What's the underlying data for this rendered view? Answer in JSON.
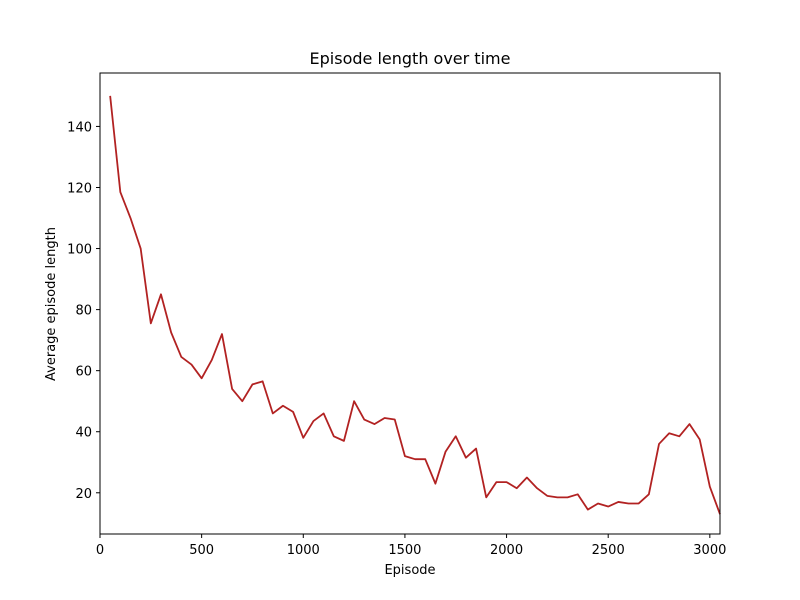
{
  "chart_data": {
    "type": "line",
    "title": "Episode length over time",
    "xlabel": "Episode",
    "ylabel": "Average episode length",
    "xlim": [
      0,
      3050
    ],
    "ylim": [
      6.5,
      157.5
    ],
    "xticks": [
      0,
      500,
      1000,
      1500,
      2000,
      2500,
      3000
    ],
    "yticks": [
      20,
      40,
      60,
      80,
      100,
      120,
      140
    ],
    "grid": false,
    "legend": "none",
    "series": [
      {
        "color": "#b22222",
        "x": [
          50,
          100,
          150,
          200,
          250,
          300,
          350,
          400,
          450,
          500,
          550,
          600,
          650,
          700,
          750,
          800,
          850,
          900,
          950,
          1000,
          1050,
          1100,
          1150,
          1200,
          1250,
          1300,
          1350,
          1400,
          1450,
          1500,
          1550,
          1600,
          1650,
          1700,
          1750,
          1800,
          1850,
          1900,
          1950,
          2000,
          2050,
          2100,
          2150,
          2200,
          2250,
          2300,
          2350,
          2400,
          2450,
          2500,
          2550,
          2600,
          2650,
          2700,
          2750,
          2800,
          2850,
          2900,
          2950,
          3000,
          3050
        ],
        "y": [
          150,
          118.5,
          110,
          100,
          75.5,
          85,
          72.5,
          64.5,
          62,
          57.5,
          63.5,
          72,
          54,
          50,
          55.5,
          56.5,
          46,
          48.5,
          46.5,
          38,
          43.5,
          46,
          38.5,
          37,
          50,
          44,
          42.5,
          44.5,
          44,
          32,
          31,
          31,
          23,
          33.5,
          38.5,
          31.5,
          34.5,
          18.5,
          23.5,
          23.5,
          21.5,
          25,
          21.5,
          19,
          18.5,
          18.5,
          19.5,
          14.5,
          16.5,
          15.5,
          17,
          16.5,
          16.5,
          19.5,
          36,
          39.5,
          38.5,
          42.5,
          37.5,
          22,
          13
        ]
      }
    ]
  }
}
